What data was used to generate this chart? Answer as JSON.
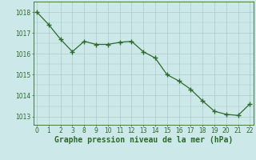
{
  "hours": [
    0,
    1,
    2,
    3,
    8,
    9,
    10,
    11,
    12,
    13,
    14,
    15,
    16,
    17,
    18,
    19,
    20,
    21,
    22
  ],
  "pressure": [
    1018.0,
    1017.4,
    1016.7,
    1016.1,
    1016.6,
    1016.45,
    1016.45,
    1016.55,
    1016.6,
    1016.1,
    1015.8,
    1015.0,
    1014.7,
    1014.3,
    1013.75,
    1013.25,
    1013.1,
    1013.05,
    1013.6
  ],
  "line_color": "#2d6a2d",
  "marker_color": "#2d6a2d",
  "bg_color": "#cce8e8",
  "grid_color_major": "#aacaca",
  "xlabel": "Graphe pression niveau de la mer (hPa)",
  "ylim_min": 1012.6,
  "ylim_max": 1018.5,
  "yticks": [
    1013,
    1014,
    1015,
    1016,
    1017,
    1018
  ],
  "hour_labels": [
    "0",
    "1",
    "2",
    "3",
    "8",
    "9",
    "10",
    "11",
    "12",
    "13",
    "14",
    "15",
    "16",
    "17",
    "18",
    "19",
    "20",
    "21",
    "22"
  ],
  "xlabel_fontsize": 7.0,
  "tick_fontsize": 5.5
}
